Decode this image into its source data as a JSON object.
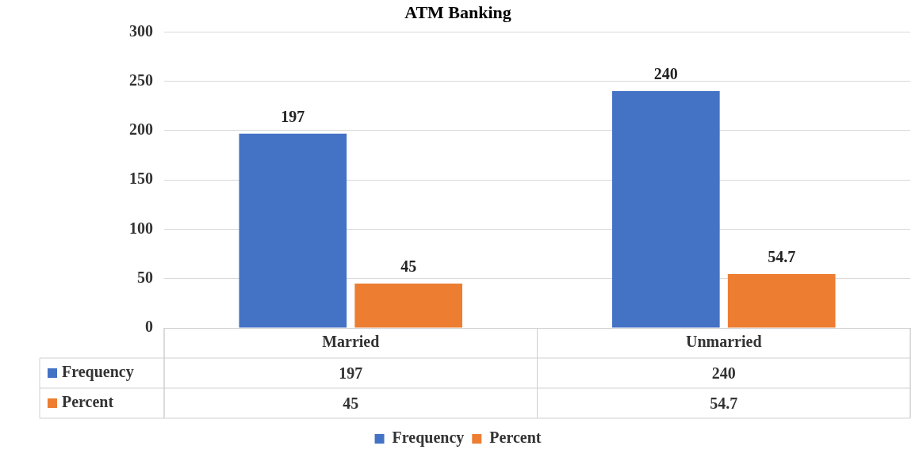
{
  "chart_data": {
    "type": "bar",
    "title": "ATM Banking",
    "categories": [
      "Married",
      "Unmarried"
    ],
    "series": [
      {
        "name": "Frequency",
        "color": "#4472c4",
        "values": [
          197,
          240
        ],
        "value_labels": [
          "197",
          "240"
        ]
      },
      {
        "name": "Percent",
        "color": "#ed7d31",
        "values": [
          45,
          54.7
        ],
        "value_labels": [
          "45",
          "54.7"
        ]
      }
    ],
    "ylim": [
      0,
      300
    ],
    "yticks": [
      0,
      50,
      100,
      150,
      200,
      250,
      300
    ],
    "annotations": [
      "197",
      "240",
      "45",
      "54.7"
    ],
    "grid": "y",
    "legend": "bottom"
  }
}
